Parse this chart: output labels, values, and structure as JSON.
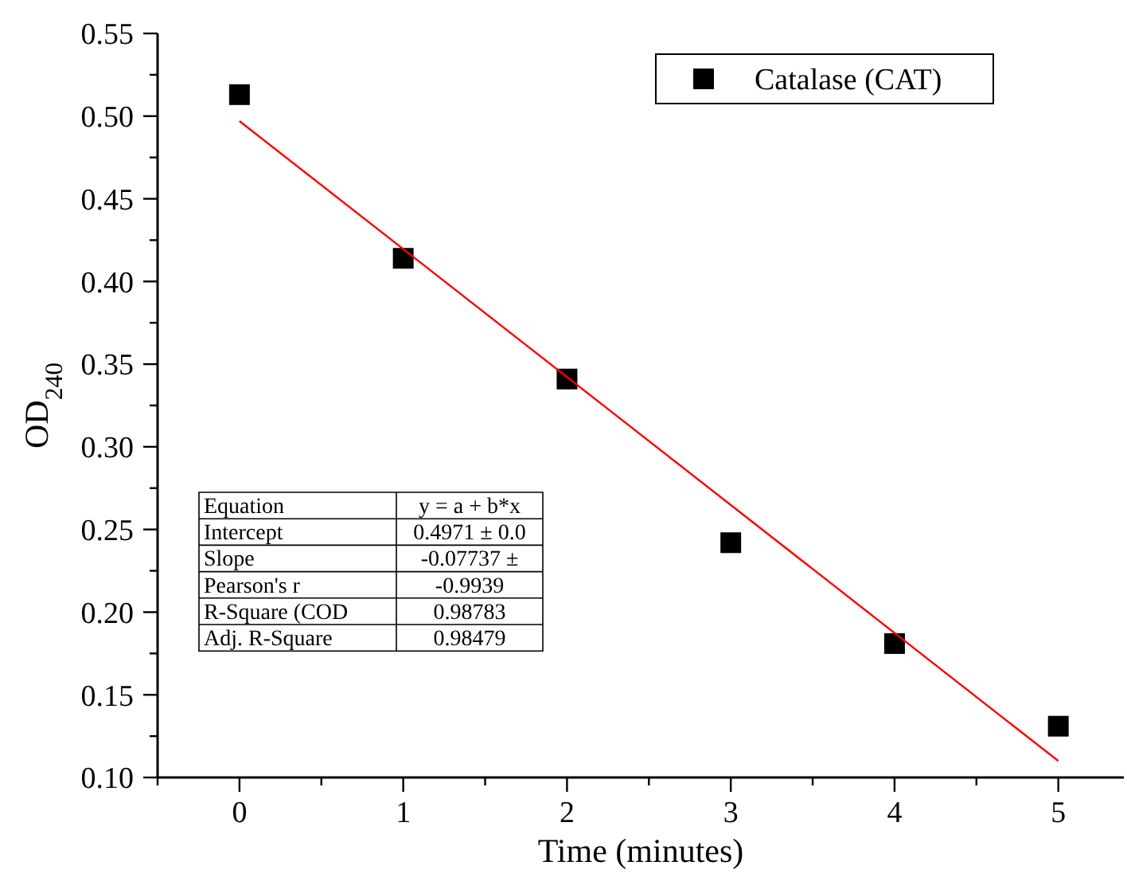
{
  "chart_data": {
    "type": "scatter",
    "xlabel": "Time (minutes)",
    "ylabel": "OD$_{240}$",
    "xlim": [
      -0.5,
      5.4
    ],
    "ylim": [
      0.1,
      0.55
    ],
    "xticks": [
      {
        "value": -0.5,
        "label": null
      },
      0,
      {
        "value": 0.5,
        "label": null
      },
      1,
      {
        "value": 1.5,
        "label": null
      },
      2,
      {
        "value": 2.5,
        "label": null
      },
      3,
      {
        "value": 3.5,
        "label": null
      },
      4,
      {
        "value": 4.5,
        "label": null
      },
      5
    ],
    "yticks": [
      {
        "value": 0.1,
        "label": "0.10"
      },
      {
        "value": 0.125,
        "label": null
      },
      0.15,
      {
        "value": 0.175,
        "label": null
      },
      {
        "value": 0.2,
        "label": "0.20"
      },
      {
        "value": 0.225,
        "label": null
      },
      0.25,
      {
        "value": 0.275,
        "label": null
      },
      {
        "value": 0.3,
        "label": "0.30"
      },
      {
        "value": 0.325,
        "label": null
      },
      0.35,
      {
        "value": 0.375,
        "label": null
      },
      {
        "value": 0.4,
        "label": "0.40"
      },
      {
        "value": 0.425,
        "label": null
      },
      0.45,
      {
        "value": 0.475,
        "label": null
      },
      {
        "value": 0.5,
        "label": "0.50"
      },
      {
        "value": 0.525,
        "label": null
      },
      0.55
    ],
    "grid": false,
    "legend": "top right",
    "marker": "square",
    "series": [
      {
        "name": "Catalase (CAT)",
        "color": "#000000",
        "x": [
          0,
          1,
          2,
          3,
          4,
          5
        ],
        "values": [
          0.513,
          0.414,
          0.341,
          0.242,
          0.181,
          0.131
        ]
      },
      {
        "color": "#ff0000",
        "type": "line",
        "marker": "none",
        "x": [
          0,
          5
        ],
        "values": [
          0.497,
          0.11
        ]
      }
    ],
    "annotations": [
      "Equation",
      "y = a + b*x",
      "Intercept",
      "0.4971 ± 0.0",
      "Slope",
      "-0.07737 ±",
      "Pearson's r",
      "-0.9939",
      "R-Square (COD",
      "0.98783",
      "Adj. R-Square",
      "0.98479"
    ]
  }
}
